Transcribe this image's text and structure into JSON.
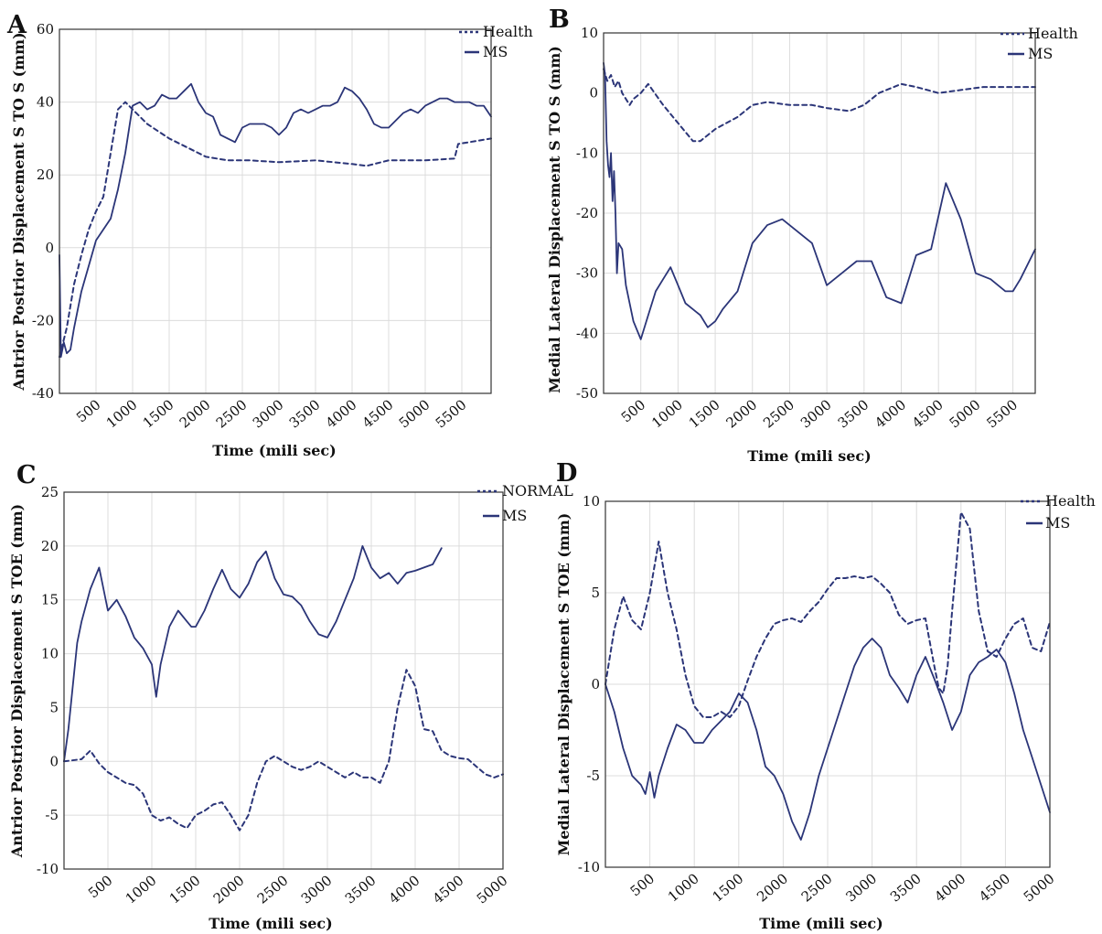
{
  "colors": {
    "ms": "#2b3578",
    "health": "#2b3578",
    "grid": "#dcdcdc"
  },
  "chart_data": [
    {
      "panel": "A",
      "type": "line",
      "xlabel": "Time (mili sec)",
      "ylabel": "Antrior Postrior Displacement S TO S (mm)",
      "xlim": [
        0,
        5900
      ],
      "ylim": [
        -40,
        60
      ],
      "xticks": [
        500,
        1000,
        1500,
        2000,
        2500,
        3000,
        3500,
        4000,
        4500,
        5000,
        5500
      ],
      "yticks": [
        -40,
        -20,
        0,
        20,
        40,
        60
      ],
      "grid": true,
      "legend_position": "top-right",
      "series": [
        {
          "name": "Health",
          "style": "dashed",
          "x": [
            0,
            100,
            200,
            300,
            400,
            500,
            600,
            700,
            800,
            900,
            1000,
            1200,
            1500,
            1800,
            2000,
            2300,
            2600,
            3000,
            3500,
            4000,
            4200,
            4500,
            5000,
            5400,
            5450,
            5900
          ],
          "y": [
            -30,
            -22,
            -10,
            -2,
            5,
            10,
            14,
            26,
            38,
            40,
            38,
            34,
            30,
            27,
            25,
            24,
            24,
            23.5,
            24,
            23,
            22.5,
            24,
            24,
            24.5,
            28.5,
            30
          ]
        },
        {
          "name": "MS",
          "style": "solid",
          "x": [
            0,
            20,
            60,
            100,
            150,
            200,
            300,
            400,
            500,
            600,
            700,
            800,
            900,
            1000,
            1100,
            1200,
            1300,
            1400,
            1500,
            1600,
            1700,
            1800,
            1900,
            2000,
            2100,
            2200,
            2300,
            2400,
            2500,
            2600,
            2700,
            2800,
            2900,
            3000,
            3100,
            3200,
            3300,
            3400,
            3500,
            3600,
            3700,
            3800,
            3900,
            4000,
            4100,
            4200,
            4300,
            4400,
            4500,
            4600,
            4700,
            4800,
            4900,
            5000,
            5100,
            5200,
            5300,
            5400,
            5500,
            5600,
            5700,
            5800,
            5900
          ],
          "y": [
            -2,
            -30,
            -26,
            -29,
            -28,
            -22,
            -12,
            -5,
            2,
            5,
            8,
            16,
            26,
            39,
            40,
            38,
            39,
            42,
            41,
            41,
            43,
            45,
            40,
            37,
            36,
            31,
            30,
            29,
            33,
            34,
            34,
            34,
            33,
            31,
            33,
            37,
            38,
            37,
            38,
            39,
            39,
            40,
            44,
            43,
            41,
            38,
            34,
            33,
            33,
            35,
            37,
            38,
            37,
            39,
            40,
            41,
            41,
            40,
            40,
            40,
            39,
            39,
            36
          ]
        }
      ]
    },
    {
      "panel": "B",
      "type": "line",
      "xlabel": "Time (mili sec)",
      "ylabel": "Medial Lateral Displacement S TO S (mm)",
      "xlim": [
        0,
        5800
      ],
      "ylim": [
        -50,
        10
      ],
      "xticks": [
        500,
        1000,
        1500,
        2000,
        2500,
        3000,
        3500,
        4000,
        4500,
        5000,
        5500
      ],
      "yticks": [
        -50,
        -40,
        -30,
        -20,
        -10,
        0,
        10
      ],
      "grid": true,
      "legend_position": "top-right",
      "series": [
        {
          "name": "Health",
          "style": "dashed",
          "x": [
            0,
            50,
            100,
            150,
            200,
            250,
            300,
            350,
            400,
            500,
            600,
            800,
            1000,
            1200,
            1300,
            1500,
            1800,
            2000,
            2200,
            2500,
            2800,
            3000,
            3300,
            3500,
            3700,
            3900,
            4000,
            4200,
            4500,
            4800,
            5100,
            5500,
            5800
          ],
          "y": [
            4,
            2,
            3,
            1,
            2,
            0,
            -1,
            -2,
            -1,
            0,
            1.5,
            -2,
            -5,
            -8,
            -8,
            -6,
            -4,
            -2,
            -1.5,
            -2,
            -2,
            -2.5,
            -3,
            -2,
            0,
            1,
            1.5,
            1,
            0,
            0.5,
            1,
            1,
            1
          ]
        },
        {
          "name": "MS",
          "style": "solid",
          "x": [
            0,
            20,
            40,
            60,
            80,
            100,
            120,
            140,
            160,
            180,
            200,
            250,
            300,
            400,
            500,
            600,
            700,
            800,
            900,
            1000,
            1100,
            1200,
            1300,
            1400,
            1500,
            1600,
            1800,
            2000,
            2200,
            2400,
            2600,
            2800,
            3000,
            3200,
            3400,
            3600,
            3800,
            4000,
            4200,
            4400,
            4600,
            4800,
            5000,
            5200,
            5400,
            5500,
            5600,
            5800
          ],
          "y": [
            5,
            3,
            -8,
            -12,
            -14,
            -10,
            -18,
            -13,
            -20,
            -30,
            -25,
            -26,
            -32,
            -38,
            -41,
            -37,
            -33,
            -31,
            -29,
            -32,
            -35,
            -36,
            -37,
            -39,
            -38,
            -36,
            -33,
            -25,
            -22,
            -21,
            -23,
            -25,
            -32,
            -30,
            -28,
            -28,
            -34,
            -35,
            -27,
            -26,
            -15,
            -21,
            -30,
            -31,
            -33,
            -33,
            -31,
            -26
          ]
        }
      ]
    },
    {
      "panel": "C",
      "type": "line",
      "xlabel": "Time (mili sec)",
      "ylabel": "Antrior Postrior Displacement S TOE (mm)",
      "xlim": [
        0,
        5000
      ],
      "ylim": [
        -10,
        25
      ],
      "xticks": [
        500,
        1000,
        1500,
        2000,
        2500,
        3000,
        3500,
        4000,
        4500,
        5000
      ],
      "yticks": [
        -10,
        -5,
        0,
        5,
        10,
        15,
        20,
        25
      ],
      "grid": true,
      "legend_position": "top-right",
      "series": [
        {
          "name": "NORMAL",
          "style": "dashed",
          "x": [
            0,
            200,
            300,
            400,
            500,
            700,
            800,
            900,
            1000,
            1100,
            1200,
            1300,
            1400,
            1500,
            1600,
            1700,
            1800,
            1900,
            2000,
            2100,
            2200,
            2300,
            2400,
            2500,
            2600,
            2700,
            2800,
            2900,
            3000,
            3100,
            3200,
            3300,
            3400,
            3500,
            3600,
            3700,
            3800,
            3900,
            4000,
            4100,
            4200,
            4300,
            4400,
            4500,
            4600,
            4700,
            4800,
            4900,
            5000
          ],
          "y": [
            0,
            0.2,
            1,
            -0.2,
            -1,
            -2,
            -2.2,
            -3,
            -5,
            -5.5,
            -5.2,
            -5.8,
            -6.2,
            -5,
            -4.6,
            -4,
            -3.8,
            -5,
            -6.4,
            -5,
            -2,
            0,
            0.5,
            0,
            -0.5,
            -0.8,
            -0.5,
            0,
            -0.5,
            -1,
            -1.5,
            -1,
            -1.5,
            -1.5,
            -2,
            0,
            5,
            8.5,
            7,
            3,
            2.8,
            1,
            0.5,
            0.3,
            0.2,
            -0.5,
            -1.2,
            -1.5,
            -1.2
          ]
        },
        {
          "name": "MS",
          "style": "solid",
          "x": [
            0,
            50,
            100,
            150,
            200,
            300,
            400,
            500,
            600,
            700,
            800,
            900,
            1000,
            1050,
            1100,
            1200,
            1300,
            1400,
            1450,
            1500,
            1600,
            1700,
            1800,
            1900,
            2000,
            2100,
            2200,
            2300,
            2400,
            2500,
            2600,
            2700,
            2800,
            2900,
            3000,
            3100,
            3200,
            3300,
            3400,
            3500,
            3600,
            3700,
            3800,
            3900,
            4000,
            4100,
            4200,
            4300
          ],
          "y": [
            0,
            3,
            7,
            11,
            13,
            16,
            18,
            14,
            15,
            13.5,
            11.5,
            10.5,
            9,
            6,
            9,
            12.5,
            14,
            13,
            12.5,
            12.5,
            14,
            16,
            17.8,
            16,
            15.2,
            16.5,
            18.5,
            19.5,
            17,
            15.5,
            15.3,
            14.5,
            13,
            11.8,
            11.5,
            13,
            15,
            17,
            20,
            18,
            17,
            17.5,
            16.5,
            17.5,
            17.7,
            18,
            18.3,
            19.8
          ]
        }
      ]
    },
    {
      "panel": "D",
      "type": "line",
      "xlabel": "Time (mili sec)",
      "ylabel": "Medial Lateral Displacement S TOE (mm)",
      "xlim": [
        0,
        5000
      ],
      "ylim": [
        -10,
        10
      ],
      "xticks": [
        500,
        1000,
        1500,
        2000,
        2500,
        3000,
        3500,
        4000,
        4500,
        5000
      ],
      "yticks": [
        -10,
        -5,
        0,
        5,
        10
      ],
      "grid": true,
      "legend_position": "top-right",
      "series": [
        {
          "name": "Health",
          "style": "dashed",
          "x": [
            0,
            100,
            200,
            300,
            400,
            500,
            600,
            700,
            800,
            900,
            1000,
            1100,
            1200,
            1300,
            1400,
            1500,
            1600,
            1700,
            1800,
            1900,
            2000,
            2100,
            2200,
            2300,
            2400,
            2500,
            2600,
            2700,
            2800,
            2900,
            3000,
            3100,
            3200,
            3300,
            3400,
            3500,
            3600,
            3700,
            3750,
            3800,
            3850,
            3900,
            4000,
            4100,
            4200,
            4300,
            4400,
            4500,
            4600,
            4700,
            4800,
            4900,
            5000
          ],
          "y": [
            0,
            3,
            4.8,
            3.5,
            3,
            5,
            7.8,
            5,
            3,
            0.5,
            -1.2,
            -1.8,
            -1.8,
            -1.5,
            -1.8,
            -1.2,
            0.2,
            1.5,
            2.5,
            3.3,
            3.5,
            3.6,
            3.4,
            4,
            4.5,
            5.2,
            5.8,
            5.8,
            5.9,
            5.8,
            5.9,
            5.5,
            5,
            3.8,
            3.3,
            3.5,
            3.6,
            1,
            -0.2,
            -0.5,
            1,
            4,
            9.4,
            8.5,
            4,
            1.8,
            1.5,
            2.5,
            3.3,
            3.6,
            2,
            1.8,
            3.4
          ]
        },
        {
          "name": "MS",
          "style": "solid",
          "x": [
            0,
            100,
            200,
            300,
            400,
            450,
            500,
            550,
            600,
            700,
            800,
            900,
            1000,
            1100,
            1200,
            1300,
            1400,
            1500,
            1600,
            1700,
            1800,
            1900,
            2000,
            2100,
            2200,
            2300,
            2400,
            2500,
            2600,
            2700,
            2800,
            2900,
            3000,
            3100,
            3200,
            3300,
            3400,
            3500,
            3600,
            3700,
            3800,
            3900,
            4000,
            4100,
            4200,
            4300,
            4400,
            4500,
            4600,
            4700,
            4800,
            4900,
            5000
          ],
          "y": [
            0,
            -1.5,
            -3.5,
            -5,
            -5.5,
            -6,
            -4.8,
            -6.2,
            -5,
            -3.5,
            -2.2,
            -2.5,
            -3.2,
            -3.2,
            -2.5,
            -2,
            -1.5,
            -0.5,
            -1,
            -2.5,
            -4.5,
            -5,
            -6,
            -7.5,
            -8.5,
            -7,
            -5,
            -3.5,
            -2,
            -0.5,
            1,
            2,
            2.5,
            2,
            0.5,
            -0.2,
            -1,
            0.5,
            1.5,
            0.3,
            -1,
            -2.5,
            -1.5,
            0.5,
            1.2,
            1.5,
            1.9,
            1.2,
            -0.5,
            -2.5,
            -4,
            -5.5,
            -7
          ]
        }
      ]
    }
  ]
}
